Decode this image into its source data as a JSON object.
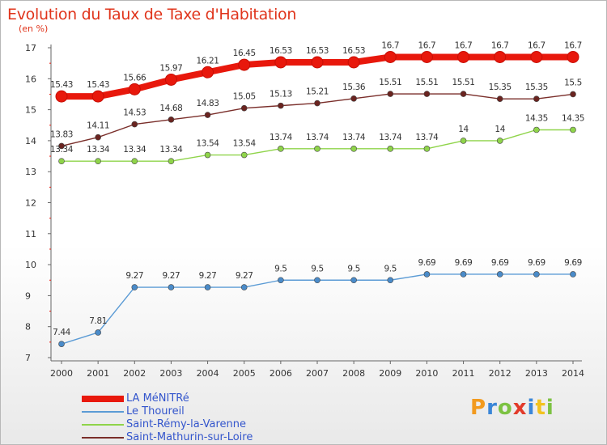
{
  "header": {
    "title": "Evolution du Taux de Taxe d'Habitation",
    "unit": "(en %)"
  },
  "logo": {
    "text": "Proxiti",
    "colors": [
      "#f29a1e",
      "#3a86d8",
      "#7cc242",
      "#e23a2a",
      "#3a86d8",
      "#f2c21e",
      "#7cc242"
    ]
  },
  "chart_data": {
    "type": "line",
    "x": [
      2000,
      2001,
      2002,
      2003,
      2004,
      2005,
      2006,
      2007,
      2008,
      2009,
      2010,
      2011,
      2012,
      2013,
      2014
    ],
    "ylim": [
      7,
      17
    ],
    "yticks": [
      7,
      8,
      9,
      10,
      11,
      12,
      13,
      14,
      15,
      16,
      17
    ],
    "grid": false,
    "legend_position": "bottom",
    "series": [
      {
        "name": "LA MéNITRé",
        "color": "#e8180c",
        "values": [
          15.43,
          15.43,
          15.66,
          15.97,
          16.21,
          16.45,
          16.53,
          16.53,
          16.53,
          16.7,
          16.7,
          16.7,
          16.7,
          16.7,
          16.7
        ],
        "labels": [
          "15.43",
          "15.43",
          "15.66",
          "15.97",
          "16.21",
          "16.45",
          "16.53",
          "16.53",
          "16.53",
          "16.7",
          "16.7",
          "16.7",
          "16.7",
          "16.7",
          "16.7"
        ]
      },
      {
        "name": "Le Thoureil",
        "color": "#5b9bd5",
        "values": [
          7.44,
          7.81,
          9.27,
          9.27,
          9.27,
          9.27,
          9.5,
          9.5,
          9.5,
          9.5,
          9.69,
          9.69,
          9.69,
          9.69,
          9.69
        ],
        "labels": [
          "7.44",
          "7.81",
          "9.27",
          "9.27",
          "9.27",
          "9.27",
          "9.5",
          "9.5",
          "9.5",
          "9.5",
          "9.69",
          "9.69",
          "9.69",
          "9.69",
          "9.69"
        ]
      },
      {
        "name": "Saint-Rémy-la-Varenne",
        "color": "#8fd44a",
        "values": [
          13.34,
          13.34,
          13.34,
          13.34,
          13.54,
          13.54,
          13.74,
          13.74,
          13.74,
          13.74,
          13.74,
          14,
          14,
          14.35,
          14.35
        ],
        "labels": [
          "13.34",
          "13.34",
          "13.34",
          "13.34",
          "13.54",
          "13.54",
          "13.74",
          "13.74",
          "13.74",
          "13.74",
          "13.74",
          "14",
          "14",
          "14.35",
          "14.35"
        ]
      },
      {
        "name": "Saint-Mathurin-sur-Loire",
        "color": "#7a2e2a",
        "values": [
          13.83,
          14.11,
          14.53,
          14.68,
          14.83,
          15.05,
          15.13,
          15.21,
          15.36,
          15.51,
          15.51,
          15.51,
          15.35,
          15.35,
          15.5
        ],
        "labels": [
          "13.83",
          "14.11",
          "14.53",
          "14.68",
          "14.83",
          "15.05",
          "15.13",
          "15.21",
          "15.36",
          "15.51",
          "15.51",
          "15.51",
          "15.35",
          "15.35",
          "15.5"
        ]
      }
    ]
  }
}
